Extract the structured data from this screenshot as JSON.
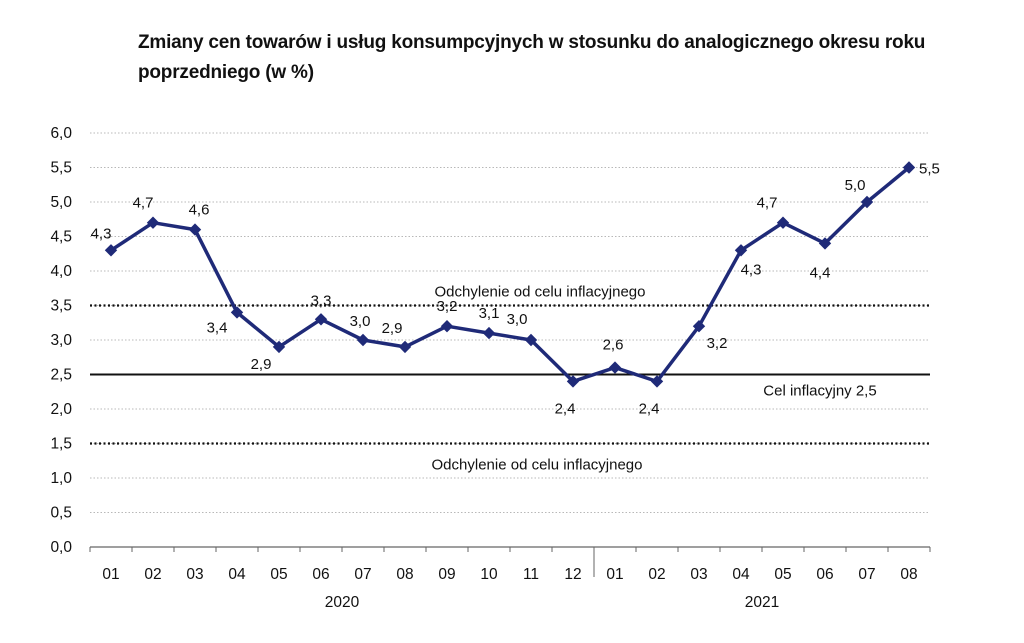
{
  "chart_data": {
    "type": "line",
    "title": "Zmiany cen towarów i usług konsumpcyjnych w stosunku do analogicznego okresu roku poprzedniego (w %)",
    "categories": [
      "01",
      "02",
      "03",
      "04",
      "05",
      "06",
      "07",
      "08",
      "09",
      "10",
      "11",
      "12",
      "01",
      "02",
      "03",
      "04",
      "05",
      "06",
      "07",
      "08"
    ],
    "years": [
      {
        "label": "2020",
        "count": 12
      },
      {
        "label": "2021",
        "count": 8
      }
    ],
    "series": [
      {
        "values": [
          4.3,
          4.7,
          4.6,
          3.4,
          2.9,
          3.3,
          3.0,
          2.9,
          3.2,
          3.1,
          3.0,
          2.4,
          2.6,
          2.4,
          3.2,
          4.3,
          4.7,
          4.4,
          5.0,
          5.5
        ],
        "labels": [
          "4,3",
          "4,7",
          "4,6",
          "3,4",
          "2,9",
          "3,3",
          "3,0",
          "2,9",
          "3,2",
          "3,1",
          "3,0",
          "2,4",
          "2,6",
          "2,4",
          "3,2",
          "4,3",
          "4,7",
          "4,4",
          "5,0",
          "5,5"
        ],
        "color": "#1f2a78"
      }
    ],
    "ylim": [
      0,
      6.0
    ],
    "yticks": [
      0,
      0.5,
      1.0,
      1.5,
      2.0,
      2.5,
      3.0,
      3.5,
      4.0,
      4.5,
      5.0,
      5.5,
      6.0
    ],
    "ytick_labels": [
      "0,0",
      "0,5",
      "1,0",
      "1,5",
      "2,0",
      "2,5",
      "3,0",
      "3,5",
      "4,0",
      "4,5",
      "5,0",
      "5,5",
      "6,0"
    ],
    "grid": true,
    "reference_lines": [
      {
        "value": 3.5,
        "style": "dotted",
        "label": "Odchylenie od celu inflacyjnego"
      },
      {
        "value": 2.5,
        "style": "solid",
        "label": "Cel inflacyjny 2,5"
      },
      {
        "value": 1.5,
        "style": "dotted",
        "label": "Odchylenie od celu inflacyjnego"
      }
    ]
  }
}
